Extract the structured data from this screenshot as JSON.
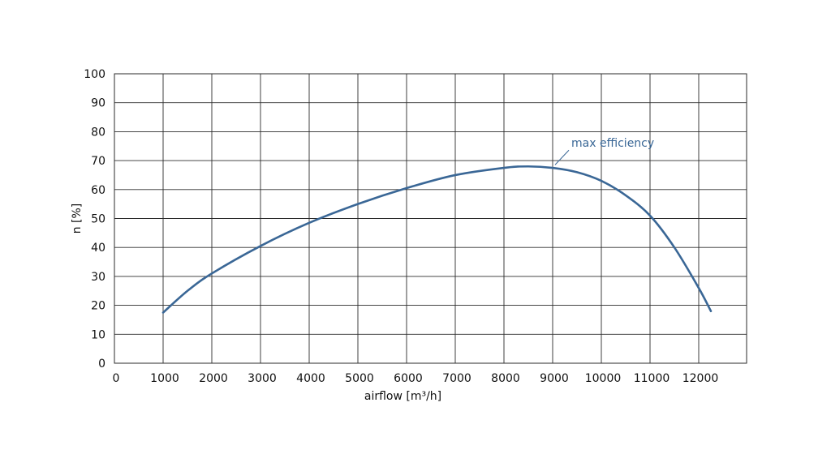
{
  "chart_data": {
    "type": "line",
    "title": "",
    "xlabel": "airflow [m³/h]",
    "ylabel": "n [%]",
    "xlim": [
      0,
      13000
    ],
    "ylim": [
      0,
      100
    ],
    "x_ticks": [
      0,
      1000,
      2000,
      3000,
      4000,
      5000,
      6000,
      7000,
      8000,
      9000,
      10000,
      11000,
      12000
    ],
    "y_ticks": [
      0,
      10,
      20,
      30,
      40,
      50,
      60,
      70,
      80,
      90,
      100
    ],
    "grid": true,
    "legend": "none",
    "series": [
      {
        "color": "#3a6796",
        "x": [
          1000,
          1500,
          2000,
          3000,
          4000,
          5000,
          6000,
          7000,
          8000,
          8500,
          9000,
          9500,
          10000,
          10500,
          11000,
          11500,
          12000,
          12250
        ],
        "y": [
          17.5,
          25,
          31,
          40.5,
          48.5,
          55,
          60.5,
          65,
          67.5,
          68,
          67.5,
          66,
          63,
          58,
          51,
          40,
          26,
          18
        ]
      }
    ],
    "annotations": [
      {
        "text": "max efficiency",
        "x": 9000,
        "y": 68,
        "color": "#3a6796"
      }
    ]
  }
}
